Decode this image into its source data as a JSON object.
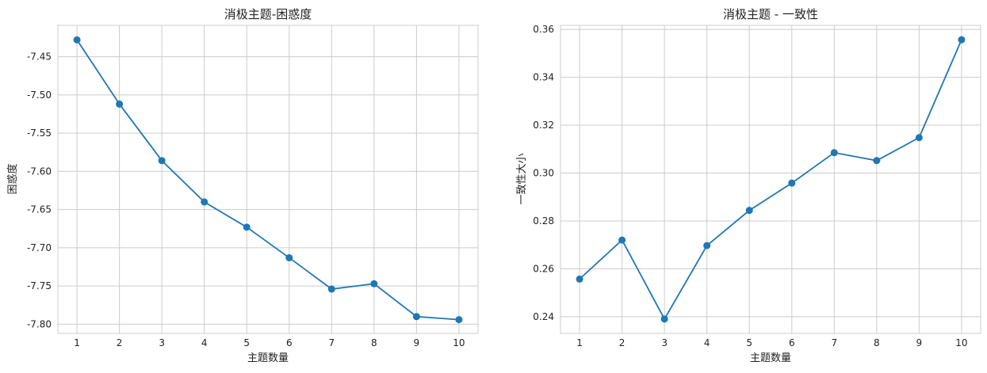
{
  "chart_data": [
    {
      "type": "line",
      "title": "消极主题-困惑度",
      "xlabel": "主题数量",
      "ylabel": "困惑度",
      "x": [
        1,
        2,
        3,
        4,
        5,
        6,
        7,
        8,
        9,
        10
      ],
      "y": [
        -7.428,
        -7.512,
        -7.586,
        -7.64,
        -7.673,
        -7.713,
        -7.754,
        -7.747,
        -7.79,
        -7.794
      ],
      "xticks": [
        "1",
        "2",
        "3",
        "4",
        "5",
        "6",
        "7",
        "8",
        "9",
        "10"
      ],
      "yticks": [
        "-7.45",
        "-7.50",
        "-7.55",
        "-7.60",
        "-7.65",
        "-7.70",
        "-7.75",
        "-7.80"
      ],
      "ytick_values": [
        -7.45,
        -7.5,
        -7.55,
        -7.6,
        -7.65,
        -7.7,
        -7.75,
        -7.8
      ],
      "xlim": [
        0.55,
        10.45
      ],
      "ylim": [
        -7.812,
        -7.409
      ],
      "grid": true,
      "color": "#1f77b4",
      "marker": "circle"
    },
    {
      "type": "line",
      "title": "消极主题 - 一致性",
      "xlabel": "主题数量",
      "ylabel": "一致性大小",
      "x": [
        1,
        2,
        3,
        4,
        5,
        6,
        7,
        8,
        9,
        10
      ],
      "y": [
        0.2557,
        0.272,
        0.239,
        0.2697,
        0.2844,
        0.2958,
        0.3085,
        0.3052,
        0.3148,
        0.3557
      ],
      "xticks": [
        "1",
        "2",
        "3",
        "4",
        "5",
        "6",
        "7",
        "8",
        "9",
        "10"
      ],
      "yticks": [
        "0.24",
        "0.26",
        "0.28",
        "0.30",
        "0.32",
        "0.34",
        "0.36"
      ],
      "ytick_values": [
        0.24,
        0.26,
        0.28,
        0.3,
        0.32,
        0.34,
        0.36
      ],
      "xlim": [
        0.55,
        10.45
      ],
      "ylim": [
        0.233,
        0.3617
      ],
      "grid": true,
      "color": "#1f77b4",
      "marker": "circle"
    }
  ]
}
